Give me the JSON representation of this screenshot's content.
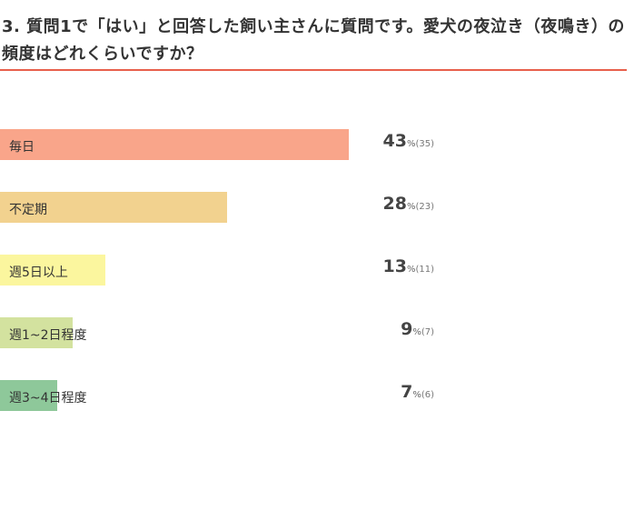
{
  "question": "3. 質問1で「はい」と回答した飼い主さんに質問です。愛犬の夜泣き（夜鳴き）の頻度はどれくらいですか？",
  "chart_data": {
    "type": "bar",
    "orientation": "horizontal",
    "title": "3. 質問1で「はい」と回答した飼い主さんに質問です。愛犬の夜泣き（夜鳴き）の頻度はどれくらいですか？",
    "categories": [
      "毎日",
      "不定期",
      "週5日以上",
      "週1~2日程度",
      "週3~4日程度"
    ],
    "values": [
      43,
      28,
      13,
      9,
      7
    ],
    "counts": [
      35,
      23,
      11,
      7,
      6
    ],
    "value_unit": "%",
    "colors": [
      "#f9a58a",
      "#f2d28f",
      "#fbf69e",
      "#d3e29f",
      "#8ec89a"
    ],
    "count_labels": [
      "(35)",
      "(23)",
      "(11)",
      "(7)",
      "(6)"
    ],
    "percent_sign": "%",
    "grid": false,
    "legend": "none"
  }
}
